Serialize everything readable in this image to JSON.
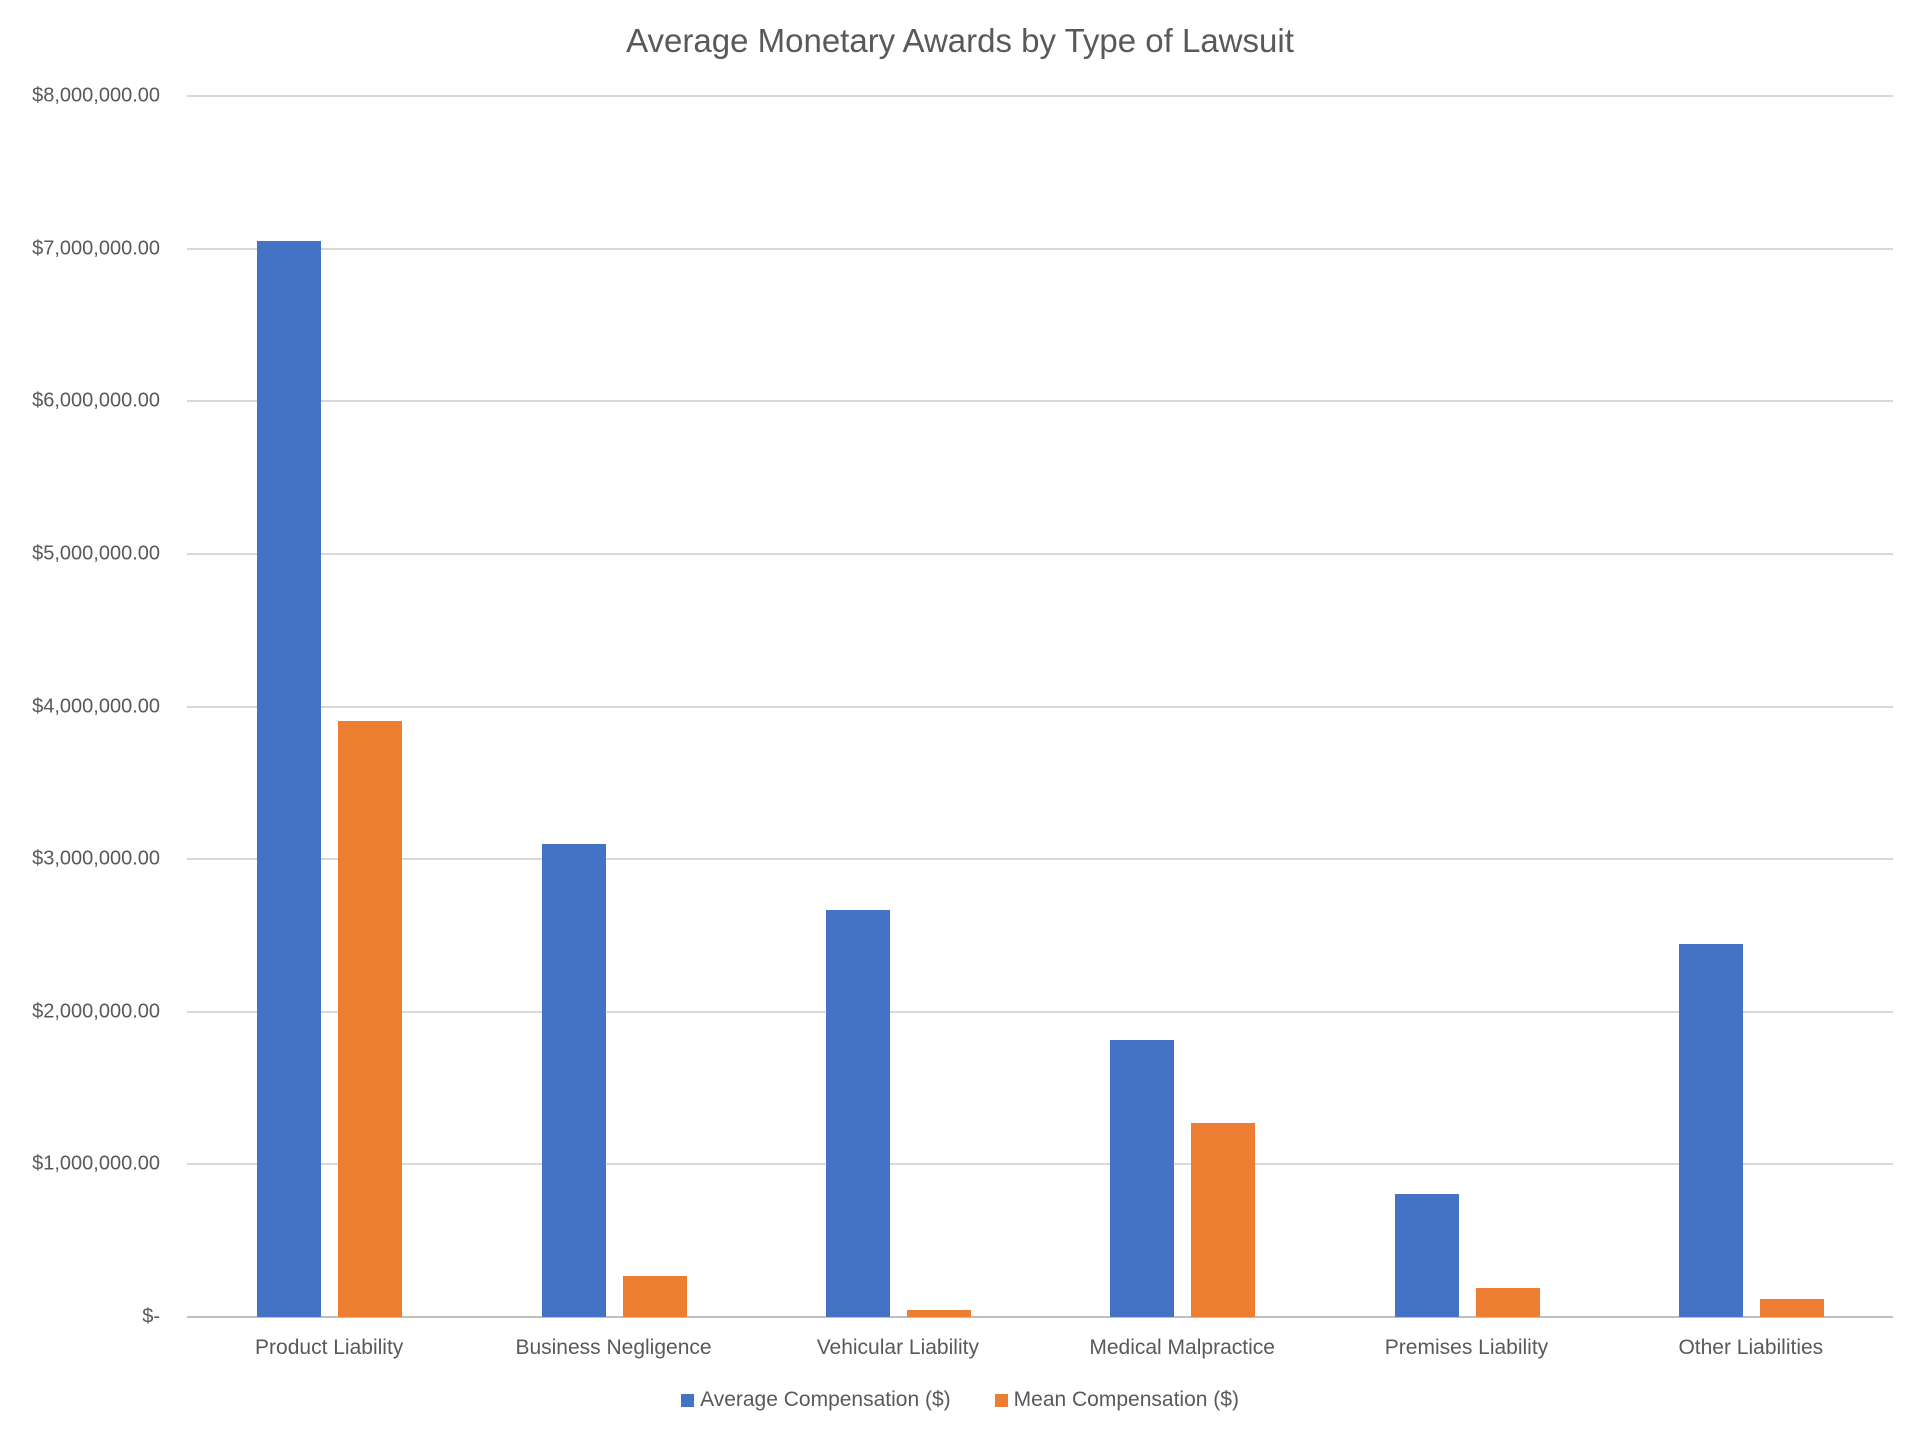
{
  "chart_data": {
    "type": "bar",
    "title": "Average Monetary Awards by Type of Lawsuit",
    "xlabel": "",
    "ylabel": "",
    "ylim": [
      0,
      8000000
    ],
    "grid": true,
    "legend_position": "bottom",
    "categories": [
      "Product Liability",
      "Business Negligence",
      "Vehicular Liability",
      "Medical Malpractice",
      "Premises Liability",
      "Other Liabilities"
    ],
    "series": [
      {
        "name": "Average Compensation ($)",
        "color": "#4472c4",
        "values": [
          7050000,
          3100000,
          2670000,
          1815000,
          806000,
          2444000
        ]
      },
      {
        "name": "Mean Compensation ($)",
        "color": "#ed7d31",
        "values": [
          3905000,
          270000,
          44000,
          1270000,
          190000,
          118000
        ]
      }
    ],
    "y_ticks": [
      "$-",
      "$1,000,000.00",
      "$2,000,000.00",
      "$3,000,000.00",
      "$4,000,000.00",
      "$5,000,000.00",
      "$6,000,000.00",
      "$7,000,000.00",
      "$8,000,000.00"
    ]
  }
}
